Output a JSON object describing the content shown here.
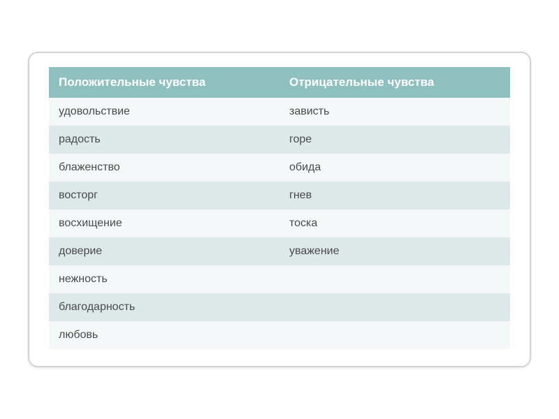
{
  "table": {
    "headers": {
      "positive": "Положительные чувства",
      "negative": "Отрицательные чувства"
    },
    "rows": [
      {
        "positive": "удовольствие",
        "negative": "зависть"
      },
      {
        "positive": "радость",
        "negative": "горе"
      },
      {
        "positive": "блаженство",
        "negative": "обида"
      },
      {
        "positive": "восторг",
        "negative": "гнев"
      },
      {
        "positive": "восхищение",
        "negative": "тоска"
      },
      {
        "positive": "доверие",
        "negative": "уважение"
      },
      {
        "positive": "нежность",
        "negative": ""
      },
      {
        "positive": "благодарность",
        "negative": ""
      },
      {
        "positive": "любовь",
        "negative": ""
      }
    ],
    "colors": {
      "header_bg": "#8ec0bf",
      "header_text": "#ffffff",
      "row_odd_bg": "#f4f8f8",
      "row_even_bg": "#dce9e8",
      "cell_text": "#4a4a4a",
      "card_border": "#d0d4d6"
    },
    "font_sizes": {
      "header": 17,
      "cell": 16
    }
  }
}
